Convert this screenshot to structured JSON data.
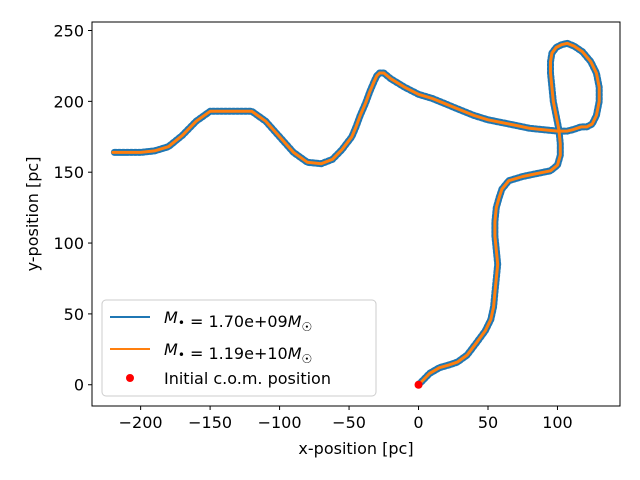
{
  "chart_data": {
    "type": "line",
    "title": "",
    "xlabel": "x-position [pc]",
    "ylabel": "y-position [pc]",
    "xlim": [
      -235,
      145
    ],
    "ylim": [
      -15,
      256
    ],
    "xticks": [
      -200,
      -150,
      -100,
      -50,
      0,
      50,
      100
    ],
    "yticks": [
      0,
      50,
      100,
      150,
      200,
      250
    ],
    "xtick_labels": [
      "−200",
      "−150",
      "−100",
      "−50",
      "0",
      "50",
      "100"
    ],
    "ytick_labels": [
      "0",
      "50",
      "100",
      "150",
      "200",
      "250"
    ],
    "grid": false,
    "legend_position": "lower-left",
    "colors": {
      "series_1": "#1f77b4",
      "series_2": "#ff7f0e",
      "initial": "#ff0000"
    },
    "series": [
      {
        "name": "M• = 1.70e+09M☉",
        "label_parts": [
          "M",
          "•",
          " = 1.70e+09",
          "M",
          "☉"
        ],
        "x": [
          0,
          3,
          8,
          15,
          22,
          28,
          35,
          42,
          48,
          52,
          54,
          55,
          56,
          57,
          56,
          55,
          55,
          56,
          58,
          60,
          65,
          75,
          85,
          95,
          100,
          102,
          102,
          101,
          99,
          97,
          96,
          95,
          95,
          96,
          99,
          103,
          107,
          112,
          118,
          124,
          128,
          130,
          130,
          128,
          125,
          121,
          117,
          114,
          111,
          107,
          100,
          90,
          80,
          70,
          60,
          50,
          40,
          30,
          20,
          10,
          0,
          -10,
          -20,
          -25,
          -28,
          -30,
          -32,
          -35,
          -38,
          -42,
          -45,
          -48,
          -52,
          -55,
          -58,
          -62,
          -70,
          -80,
          -90,
          -100,
          -110,
          -120,
          -130,
          -140,
          -150,
          -160,
          -170,
          -180,
          -190,
          -200,
          -210,
          -220
        ],
        "y": [
          0,
          3,
          8,
          12,
          14,
          16,
          21,
          30,
          38,
          46,
          55,
          65,
          75,
          85,
          95,
          105,
          115,
          125,
          132,
          138,
          144,
          147,
          149,
          151,
          155,
          162,
          170,
          180,
          190,
          200,
          210,
          220,
          228,
          234,
          238,
          240,
          241,
          239,
          235,
          228,
          220,
          210,
          200,
          190,
          184,
          182,
          182,
          181,
          180,
          179,
          179,
          180,
          181,
          183,
          185,
          187,
          190,
          194,
          198,
          202,
          205,
          210,
          216,
          220,
          220,
          218,
          214,
          207,
          199,
          190,
          182,
          175,
          170,
          166,
          163,
          159,
          156,
          157,
          164,
          175,
          186,
          193,
          193,
          193,
          193,
          186,
          176,
          168,
          165,
          164,
          164,
          164
        ],
        "jitter": true
      },
      {
        "name": "M• = 1.19e+10M☉",
        "label_parts": [
          "M",
          "•",
          " = 1.19e+10",
          "M",
          "☉"
        ],
        "x": [
          0,
          3,
          8,
          15,
          22,
          28,
          35,
          42,
          48,
          52,
          54,
          55,
          56,
          57,
          56,
          55,
          55,
          56,
          58,
          60,
          65,
          75,
          85,
          95,
          100,
          102,
          102,
          101,
          99,
          97,
          96,
          95,
          95,
          96,
          99,
          103,
          107,
          112,
          118,
          124,
          128,
          130,
          130,
          128,
          125,
          121,
          117,
          114,
          111,
          107,
          100,
          90,
          80,
          70,
          60,
          50,
          40,
          30,
          20,
          10,
          0,
          -10,
          -20,
          -25,
          -28,
          -30,
          -32,
          -35,
          -38,
          -42,
          -45,
          -48,
          -52,
          -55,
          -58,
          -62,
          -70,
          -80,
          -90,
          -100,
          -110,
          -120,
          -130,
          -140,
          -150,
          -160,
          -170,
          -180,
          -190,
          -200,
          -210,
          -220
        ],
        "y": [
          0,
          3,
          8,
          12,
          14,
          16,
          21,
          30,
          38,
          46,
          55,
          65,
          75,
          85,
          95,
          105,
          115,
          125,
          132,
          138,
          144,
          147,
          149,
          151,
          155,
          162,
          170,
          180,
          190,
          200,
          210,
          220,
          228,
          234,
          238,
          240,
          241,
          239,
          235,
          228,
          220,
          210,
          200,
          190,
          184,
          182,
          182,
          181,
          180,
          179,
          179,
          180,
          181,
          183,
          185,
          187,
          190,
          194,
          198,
          202,
          205,
          210,
          216,
          220,
          220,
          218,
          214,
          207,
          199,
          190,
          182,
          175,
          170,
          166,
          163,
          159,
          156,
          157,
          164,
          175,
          186,
          193,
          193,
          193,
          193,
          186,
          176,
          168,
          165,
          164,
          164,
          164
        ],
        "jitter": false
      }
    ],
    "points": [
      {
        "name": "Initial c.o.m. position",
        "x": 0,
        "y": 0
      }
    ]
  }
}
